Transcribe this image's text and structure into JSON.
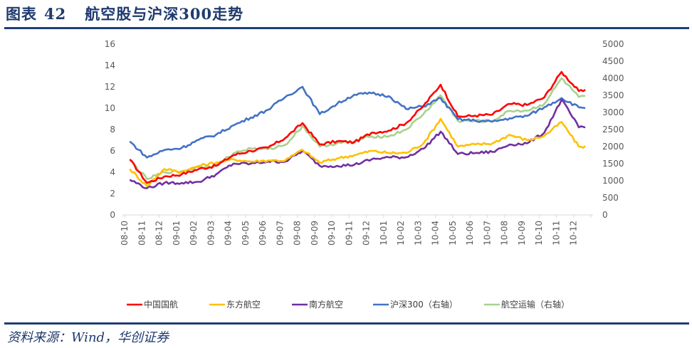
{
  "header": {
    "figure_label": "图表",
    "figure_number": "42",
    "title": "航空股与沪深300走势"
  },
  "footer": {
    "source": "资料来源：Wind，华创证券"
  },
  "colors": {
    "accent": "#1f3e74",
    "zhongguo": "#ff0000",
    "dongfang": "#ffc000",
    "nanfang": "#7030a0",
    "hs300": "#4472c4",
    "hangkong": "#a9d18e"
  },
  "chart_data": {
    "type": "line",
    "title": "航空股与沪深300走势",
    "xlabel": "",
    "ylabel": "",
    "ylim": [
      0,
      16
    ],
    "y2lim": [
      0,
      5000
    ],
    "yticks": [
      "0",
      "2",
      "4",
      "6",
      "8",
      "10",
      "12",
      "14",
      "16"
    ],
    "y2ticks": [
      "0",
      "500",
      "1000",
      "1500",
      "2000",
      "2500",
      "3000",
      "3500",
      "4000",
      "4500",
      "5000"
    ],
    "categories": [
      "08-10",
      "08-11",
      "08-12",
      "09-01",
      "09-02",
      "09-03",
      "09-04",
      "09-05",
      "09-06",
      "09-07",
      "09-08",
      "09-09",
      "09-10",
      "09-11",
      "09-12",
      "10-01",
      "10-02",
      "10-03",
      "10-04",
      "10-05",
      "10-06",
      "10-07",
      "10-08",
      "10-09",
      "10-10",
      "10-11",
      "10-12"
    ],
    "grid": false,
    "legend_position": "bottom",
    "series": [
      {
        "name": "中国国航",
        "axis": "left",
        "color": "#ff0000",
        "values": [
          5.2,
          3.0,
          3.6,
          3.8,
          4.3,
          4.6,
          5.6,
          6.0,
          6.3,
          7.2,
          8.6,
          6.6,
          6.9,
          6.8,
          7.7,
          7.9,
          8.6,
          10.2,
          12.2,
          9.2,
          9.3,
          9.4,
          10.4,
          10.3,
          11.0,
          13.4,
          11.6
        ]
      },
      {
        "name": "东方航空",
        "axis": "left",
        "color": "#ffc000",
        "values": [
          4.3,
          2.7,
          4.3,
          4.0,
          4.6,
          4.9,
          5.2,
          5.0,
          5.1,
          5.1,
          6.1,
          4.9,
          5.3,
          5.6,
          6.0,
          5.8,
          5.8,
          6.7,
          9.0,
          6.4,
          6.6,
          6.7,
          7.5,
          7.0,
          7.4,
          8.7,
          6.4
        ]
      },
      {
        "name": "南方航空",
        "axis": "left",
        "color": "#7030a0",
        "values": [
          3.3,
          2.5,
          3.0,
          3.0,
          3.1,
          3.8,
          4.8,
          4.8,
          5.0,
          5.0,
          6.0,
          4.6,
          4.6,
          4.7,
          5.2,
          5.4,
          5.4,
          6.2,
          7.8,
          5.7,
          5.8,
          5.9,
          6.6,
          6.7,
          7.7,
          10.8,
          8.2
        ]
      },
      {
        "name": "沪深300（右轴）",
        "axis": "right",
        "color": "#4472c4",
        "values": [
          2150,
          1680,
          1900,
          1960,
          2200,
          2350,
          2620,
          2850,
          3080,
          3450,
          3750,
          2950,
          3250,
          3520,
          3560,
          3480,
          3100,
          3180,
          3420,
          2800,
          2760,
          2730,
          2830,
          2900,
          3150,
          3420,
          3150
        ]
      },
      {
        "name": "航空运输（右轴）",
        "axis": "right",
        "color": "#a9d18e",
        "values": [
          1600,
          1050,
          1250,
          1280,
          1400,
          1450,
          1800,
          1950,
          1920,
          2050,
          2600,
          2000,
          2100,
          2150,
          2300,
          2300,
          2500,
          2950,
          3500,
          2750,
          2750,
          2750,
          3050,
          3050,
          3250,
          4000,
          3450
        ]
      }
    ]
  },
  "legend": [
    {
      "label": "中国国航"
    },
    {
      "label": "东方航空"
    },
    {
      "label": "南方航空"
    },
    {
      "label": "沪深300（右轴）"
    },
    {
      "label": "航空运输（右轴）"
    }
  ]
}
